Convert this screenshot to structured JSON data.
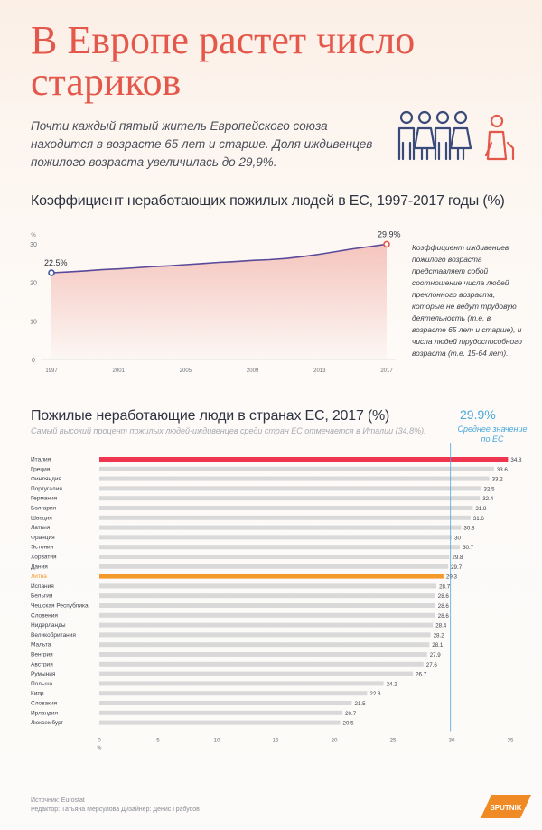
{
  "header": {
    "title": "В Европе растет число стариков",
    "subtitle": "Почти каждый пятый житель Европейского союза находится в возрасте 65 лет и старше. Доля иждивенцев пожилого возраста увеличилась до 29,9%."
  },
  "colors": {
    "accent": "#e4584b",
    "highlight": "#f0364f",
    "lithuania": "#f39a2b",
    "bar": "#d9d9d9",
    "avg": "#4aa7dc",
    "icon": "#3a4a7a"
  },
  "chart_data": [
    {
      "type": "area",
      "title": "Коэффициент неработающих пожилых людей в ЕС, 1997-2017 годы (%)",
      "ylabel": "%",
      "x": [
        1997,
        1998,
        1999,
        2000,
        2001,
        2002,
        2003,
        2004,
        2005,
        2006,
        2007,
        2008,
        2009,
        2010,
        2011,
        2012,
        2013,
        2014,
        2015,
        2016,
        2017
      ],
      "values": [
        22.5,
        22.7,
        23.0,
        23.3,
        23.5,
        23.8,
        24.1,
        24.3,
        24.6,
        24.9,
        25.2,
        25.4,
        25.7,
        25.9,
        26.2,
        26.7,
        27.3,
        28.0,
        28.7,
        29.3,
        29.9
      ],
      "start_label": "22.5%",
      "end_label": "29.9%",
      "ylim": [
        0,
        30
      ],
      "yticks": [
        "0",
        "10",
        "20",
        "30"
      ],
      "xticks": [
        "1997",
        "2001",
        "2005",
        "2009",
        "2013",
        "2017"
      ],
      "note": "Коэффициент иждивенцев пожилого возраста представляет собой соотношение числа людей преклонного возраста, которые не ведут трудовую деятельность (т.е. в возрасте 65 лет и старше), и числа людей трудоспособного возраста (т.е. 15-64 лет)."
    },
    {
      "type": "bar",
      "orientation": "horizontal",
      "title": "Пожилые неработающие люди в странах ЕС, 2017 (%)",
      "subtitle": "Самый высокий процент пожилых людей-иждивенцев среди стран ЕС отмечается в Италии (34,8%).",
      "categories": [
        "Италия",
        "Греция",
        "Финляндия",
        "Португалия",
        "Германия",
        "Болгария",
        "Швеция",
        "Латвия",
        "Франция",
        "Эстония",
        "Хорватия",
        "Дания",
        "Литва",
        "Испания",
        "Бельгия",
        "Чешская Республика",
        "Словения",
        "Нидерланды",
        "Великобритания",
        "Мальта",
        "Венгрия",
        "Австрия",
        "Румыния",
        "Польша",
        "Кипр",
        "Словакия",
        "Ирландия",
        "Люксембург"
      ],
      "values": [
        34.8,
        33.6,
        33.2,
        32.5,
        32.4,
        31.8,
        31.6,
        30.8,
        30,
        30.7,
        29.8,
        29.7,
        29.3,
        28.7,
        28.6,
        28.6,
        28.6,
        28.4,
        28.2,
        28.1,
        27.9,
        27.6,
        26.7,
        24.2,
        22.8,
        21.5,
        20.7,
        20.5
      ],
      "value_labels": [
        "34.8",
        "33.6",
        "33.2",
        "32.5",
        "32.4",
        "31.8",
        "31.6",
        "30.8",
        "30",
        "30.7",
        "29.8",
        "29.7",
        "29.3",
        "28.7",
        "28.6",
        "28.6",
        "28.6",
        "28.4",
        "28.2",
        "28.1",
        "27.9",
        "27.6",
        "26.7",
        "24.2",
        "22.8",
        "21.5",
        "20.7",
        "20.5"
      ],
      "highlight": [
        "Италия"
      ],
      "secondary_highlight": [
        "Литва"
      ],
      "xlim": [
        0,
        35
      ],
      "xticks": [
        "0",
        "5",
        "10",
        "15",
        "20",
        "25",
        "30",
        "35"
      ],
      "xunit": "%",
      "average": 29.9,
      "average_value_label": "29.9%",
      "average_label": "Среднее значение по ЕС"
    }
  ],
  "footer": {
    "source": "Источник: Eurostat",
    "credits": "Редактор: Татьяна Мерсулова   Дизайнер: Денис Грабусов",
    "logo_text": "SPUTNIK"
  }
}
